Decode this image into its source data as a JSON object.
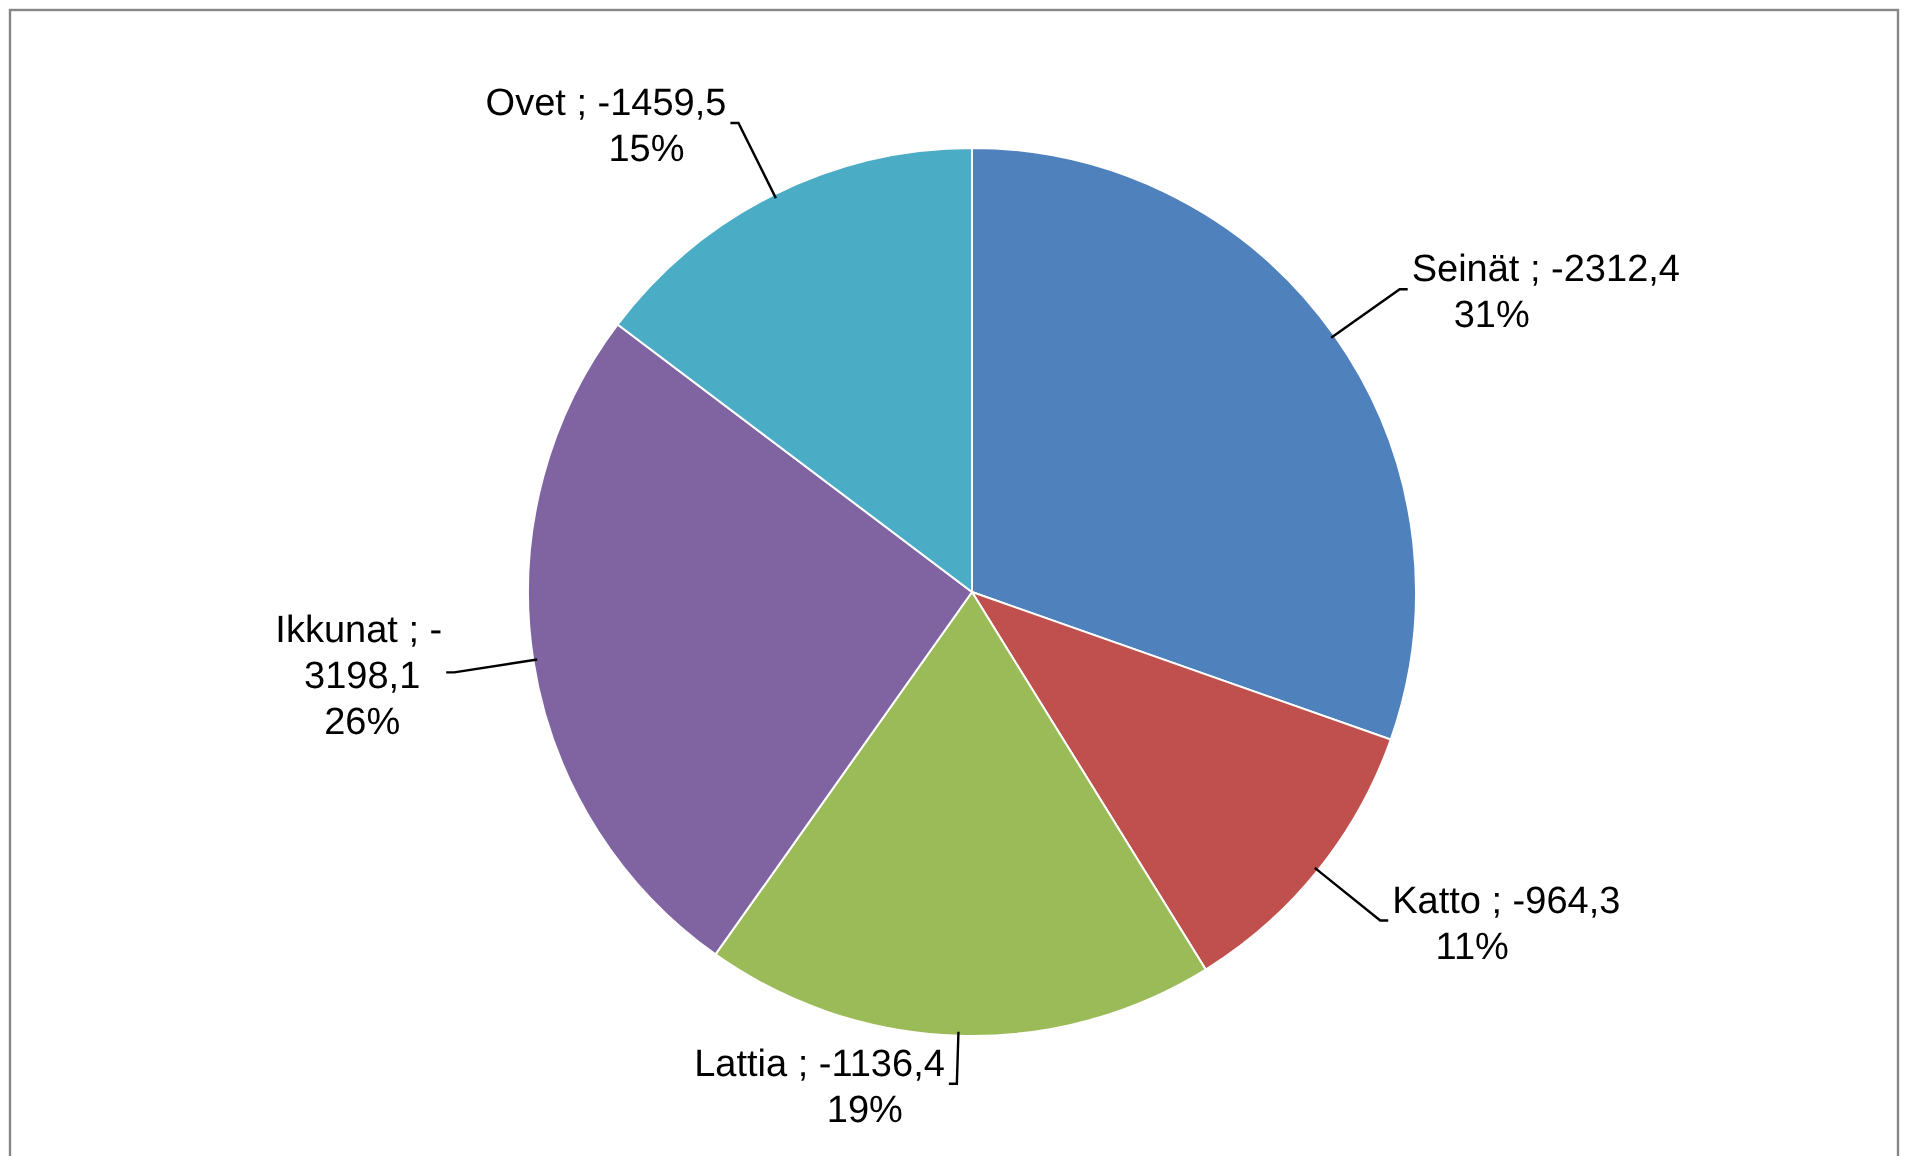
{
  "chart_data": {
    "type": "pie",
    "categories": [
      "Seinät",
      "Katto",
      "Lattia",
      "Ikkunat",
      "Ovet"
    ],
    "values": [
      31,
      11,
      19,
      26,
      15
    ],
    "colors": [
      "#4f81bd",
      "#c0504d",
      "#9bbb59",
      "#8064a2",
      "#4bacc6"
    ],
    "value_labels": [
      "-2312,4\n31%",
      "-964,3\n11%",
      "-1136,4\n19%",
      "-\n3198,1\n26%",
      "-1459,5\n15%"
    ]
  }
}
